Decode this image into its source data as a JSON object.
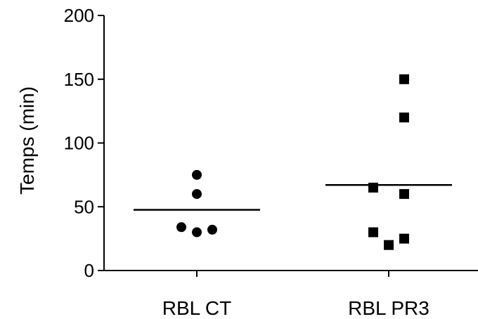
{
  "chart_data": {
    "type": "scatter",
    "title": "",
    "xlabel": "",
    "ylabel": "Temps (min)",
    "ylim": [
      0,
      200
    ],
    "yticks": [
      0,
      50,
      100,
      150,
      200
    ],
    "categories": [
      "RBL CT",
      "RBL PR3"
    ],
    "grid": false,
    "legend": "none",
    "series": [
      {
        "category": "RBL CT",
        "marker": "circle",
        "values": [
          75,
          60,
          34,
          30,
          32
        ],
        "jitter": [
          0,
          0,
          -1,
          0,
          1
        ],
        "mean": 47.6
      },
      {
        "category": "RBL PR3",
        "marker": "square",
        "values": [
          150,
          120,
          65,
          60,
          30,
          20,
          25
        ],
        "jitter": [
          1,
          1,
          -1,
          1,
          -1,
          0,
          1
        ],
        "mean": 67.1
      }
    ],
    "colors": {
      "points": "#000000",
      "axis": "#000000",
      "mean_line": "#000000"
    }
  }
}
